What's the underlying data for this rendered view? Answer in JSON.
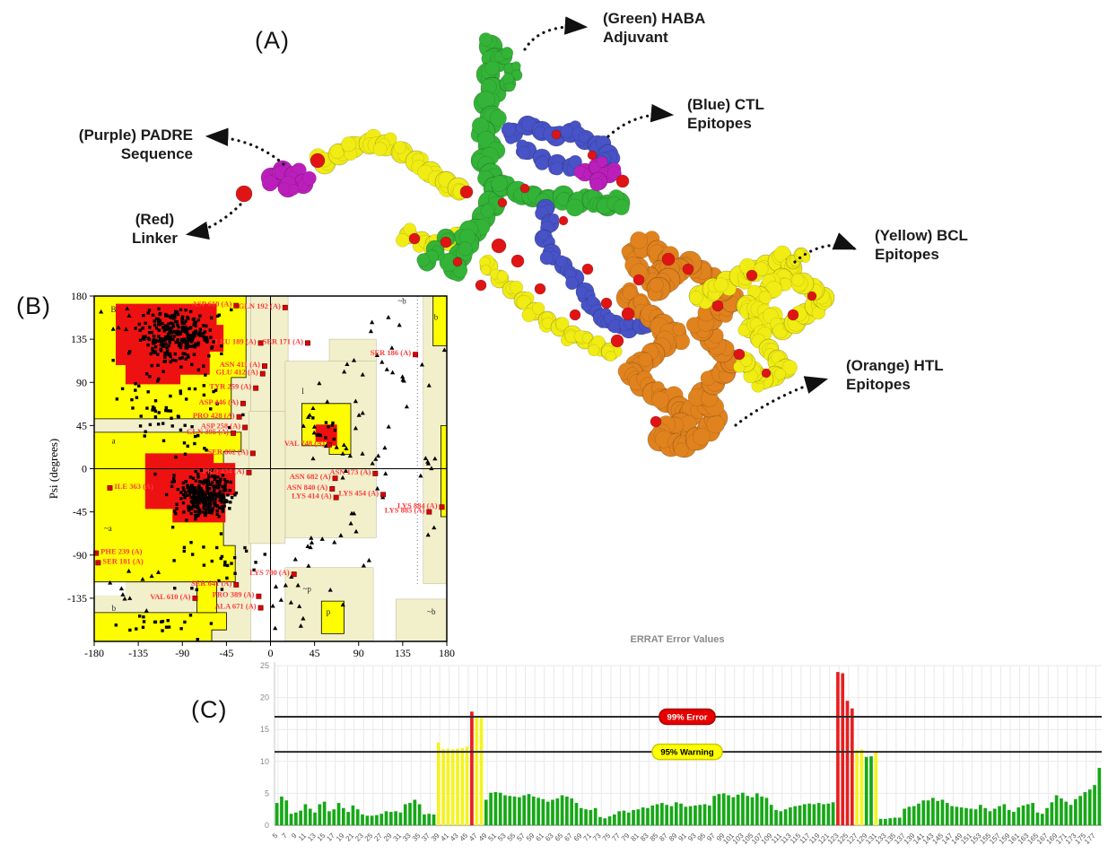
{
  "panel_labels": {
    "a": "(A)",
    "b": "(B)",
    "c": "(C)"
  },
  "molecule": {
    "colors": {
      "green": "#33b337",
      "blue": "#4753c6",
      "purple": "#bb1fbb",
      "yellow": "#f0ec14",
      "orange": "#e0821e",
      "red": "#e01414"
    },
    "annotations": [
      {
        "id": "haba",
        "line1": "(Green) HABA",
        "line2": "Adjuvant"
      },
      {
        "id": "ctl",
        "line1": "(Blue) CTL",
        "line2": "Epitopes"
      },
      {
        "id": "padre",
        "line1": "(Purple) PADRE",
        "line2": "Sequence"
      },
      {
        "id": "linker",
        "line1": "(Red)",
        "line2": "Linker"
      },
      {
        "id": "bcl",
        "line1": "(Yellow) BCL",
        "line2": "Epitopes"
      },
      {
        "id": "htl",
        "line1": "(Orange) HTL",
        "line2": "Epitopes"
      }
    ]
  },
  "chart_data": [
    {
      "type": "scatter",
      "name": "ramachandran_plot",
      "title": "",
      "xlabel": "",
      "ylabel": "Psi (degrees)",
      "xlim": [
        -180,
        180
      ],
      "ylim": [
        -180,
        180
      ],
      "xticks": [
        -180,
        -135,
        -90,
        -45,
        0,
        45,
        90,
        135,
        180
      ],
      "yticks": [
        180,
        135,
        90,
        45,
        0,
        -45,
        -90,
        -135
      ],
      "region_colors": {
        "core": "#ee1111",
        "allowed": "#fdfd00",
        "generous": "#f2efcb",
        "disallowed": "#ffffff",
        "label_text": "#ff3b3b"
      },
      "region_letters": [
        {
          "t": "B",
          "phi": -163,
          "psi": 163
        },
        {
          "t": "~b",
          "phi": 130,
          "psi": 172
        },
        {
          "t": "b",
          "phi": 167,
          "psi": 155
        },
        {
          "t": "a",
          "phi": -162,
          "psi": 26
        },
        {
          "t": "~a",
          "phi": -170,
          "psi": -65
        },
        {
          "t": "l",
          "phi": 32,
          "psi": 78
        },
        {
          "t": "b",
          "phi": -162,
          "psi": -148
        },
        {
          "t": "~b",
          "phi": 160,
          "psi": -152
        },
        {
          "t": "~p",
          "phi": 33,
          "psi": -128
        },
        {
          "t": "p",
          "phi": 57,
          "psi": -152
        }
      ],
      "labeled_residues": [
        {
          "name": "ASP 610 (A)",
          "phi": -35,
          "psi": 170,
          "side": "l"
        },
        {
          "name": "GLN 192 (A)",
          "phi": 15,
          "psi": 168,
          "side": "l"
        },
        {
          "name": "LEU 189 (A)",
          "phi": -10,
          "psi": 131,
          "side": "l"
        },
        {
          "name": "SER 171 (A)",
          "phi": 38,
          "psi": 131,
          "side": "l"
        },
        {
          "name": "SER 186 (A)",
          "phi": 148,
          "psi": 119,
          "side": "l"
        },
        {
          "name": "ASN 411 (A)",
          "phi": -6,
          "psi": 107,
          "side": "l"
        },
        {
          "name": "GLU 412 (A)",
          "phi": -8,
          "psi": 99,
          "side": "l"
        },
        {
          "name": "TYR 259 (A)",
          "phi": -15,
          "psi": 84,
          "side": "l"
        },
        {
          "name": "ASP 446 (A)",
          "phi": -28,
          "psi": 68,
          "side": "l"
        },
        {
          "name": "PRO 428 (A)",
          "phi": -32,
          "psi": 54,
          "side": "l"
        },
        {
          "name": "ASP 258 (A)",
          "phi": -26,
          "psi": 43,
          "side": "l"
        },
        {
          "name": "GLN 395 (A)",
          "phi": -38,
          "psi": 37,
          "side": "l"
        },
        {
          "name": "SER 862 (A)",
          "phi": -18,
          "psi": 16,
          "side": "l"
        },
        {
          "name": "PRO 434 (A)",
          "phi": -22,
          "psi": -4,
          "side": "l"
        },
        {
          "name": "ILE 363 (A)",
          "phi": -164,
          "psi": -20,
          "side": "r"
        },
        {
          "name": "VAL 748 (A)",
          "phi": 60,
          "psi": 25,
          "side": "l"
        },
        {
          "name": "ASN 173 (A)",
          "phi": 107,
          "psi": -5,
          "side": "l"
        },
        {
          "name": "ASN 682 (A)",
          "phi": 66,
          "psi": -10,
          "side": "l"
        },
        {
          "name": "ASN 840 (A)",
          "phi": 63,
          "psi": -21,
          "side": "l"
        },
        {
          "name": "LYS 414 (A)",
          "phi": 67,
          "psi": -30,
          "side": "l"
        },
        {
          "name": "LYS 454 (A)",
          "phi": 115,
          "psi": -27,
          "side": "l"
        },
        {
          "name": "LYS 884 (A)",
          "phi": 175,
          "psi": -40,
          "side": "l"
        },
        {
          "name": "LYS 885 (A)",
          "phi": 162,
          "psi": -45,
          "side": "l"
        },
        {
          "name": "PHE 239 (A)",
          "phi": -178,
          "psi": -88,
          "side": "r"
        },
        {
          "name": "SER 181 (A)",
          "phi": -176,
          "psi": -98,
          "side": "r"
        },
        {
          "name": "LYS 780 (A)",
          "phi": 24,
          "psi": -110,
          "side": "l"
        },
        {
          "name": "SER 641 (A)",
          "phi": -35,
          "psi": -121,
          "side": "l"
        },
        {
          "name": "VAL 610 (A)",
          "phi": -77,
          "psi": -135,
          "side": "l"
        },
        {
          "name": "PRO 389 (A)",
          "phi": -12,
          "psi": -133,
          "side": "l"
        },
        {
          "name": "ALA 671 (A)",
          "phi": -10,
          "psi": -145,
          "side": "l"
        }
      ],
      "scatter_clusters": {
        "squares": [
          {
            "n": 270,
            "cx": -95,
            "cy": 138,
            "sx": 36,
            "sy": 24
          },
          {
            "n": 300,
            "cx": -68,
            "cy": -28,
            "sx": 26,
            "sy": 20
          },
          {
            "n": 70,
            "cx": -100,
            "cy": 60,
            "sx": 52,
            "sy": 55
          },
          {
            "n": 30,
            "cx": -60,
            "cy": -95,
            "sx": 45,
            "sy": 30
          },
          {
            "n": 20,
            "cx": -120,
            "cy": -160,
            "sx": 45,
            "sy": 14
          },
          {
            "n": 12,
            "cx": 55,
            "cy": 40,
            "sx": 18,
            "sy": 14
          }
        ],
        "triangles": [
          {
            "n": 30,
            "cx": 75,
            "cy": 30,
            "sx": 45,
            "sy": 55
          },
          {
            "n": 20,
            "cx": 120,
            "cy": 110,
            "sx": 45,
            "sy": 40
          },
          {
            "n": 16,
            "cx": 60,
            "cy": -70,
            "sx": 50,
            "sy": 40
          },
          {
            "n": 12,
            "cx": 30,
            "cy": -140,
            "sx": 45,
            "sy": 25
          },
          {
            "n": 10,
            "cx": -140,
            "cy": -120,
            "sx": 30,
            "sy": 35
          },
          {
            "n": 8,
            "cx": 160,
            "cy": -30,
            "sx": 15,
            "sy": 60
          },
          {
            "n": 6,
            "cx": -160,
            "cy": 150,
            "sx": 15,
            "sy": 20
          }
        ]
      }
    },
    {
      "type": "bar",
      "name": "errat_plot",
      "title": "ERRAT Error Values",
      "ylim": [
        0,
        25
      ],
      "yticks": [
        0,
        5,
        10,
        15,
        20,
        25
      ],
      "grid": true,
      "bar_colors": {
        "g": "#17a817",
        "y": "#f4f41e",
        "r": "#e81f1f"
      },
      "thresholds": [
        {
          "value": 17,
          "label": "99% Error",
          "badge_bg": "#e60000",
          "badge_border": "#a80000",
          "badge_fg": "#ffffff"
        },
        {
          "value": 11.5,
          "label": "95% Warning",
          "badge_bg": "#ffff00",
          "badge_border": "#c9c900",
          "badge_fg": "#000000"
        }
      ],
      "x_labels": [
        "5",
        "7",
        "9",
        "11",
        "13",
        "15",
        "17",
        "19",
        "21",
        "23",
        "25",
        "27",
        "29",
        "31",
        "33",
        "35",
        "37",
        "39",
        "41",
        "43",
        "45",
        "47",
        "49",
        "51",
        "53",
        "55",
        "57",
        "59",
        "61",
        "63",
        "65",
        "67",
        "69",
        "71",
        "73",
        "75",
        "77",
        "79",
        "81",
        "83",
        "85",
        "87",
        "89",
        "91",
        "93",
        "95",
        "97",
        "99",
        "101",
        "103",
        "105",
        "107",
        "109",
        "111",
        "113",
        "115",
        "117",
        "119",
        "121",
        "123",
        "125",
        "127",
        "129",
        "131",
        "133",
        "135",
        "137",
        "139",
        "141",
        "143",
        "145",
        "147",
        "149",
        "151",
        "153",
        "155",
        "157",
        "159",
        "161",
        "163",
        "165",
        "167",
        "169",
        "171",
        "173",
        "175",
        "177"
      ],
      "values": [
        3.5,
        4.5,
        3.9,
        1.8,
        2.0,
        2.3,
        3.3,
        2.6,
        2.0,
        3.3,
        3.7,
        2.2,
        2.5,
        3.5,
        2.7,
        2.1,
        3.1,
        2.5,
        1.7,
        1.5,
        1.5,
        1.6,
        1.8,
        2.2,
        2.1,
        2.2,
        2.0,
        3.3,
        3.5,
        4.0,
        3.3,
        1.7,
        1.8,
        1.7,
        13.0,
        11.9,
        12.0,
        11.9,
        12.0,
        12.1,
        12.3,
        17.8,
        16.9,
        16.8,
        4.0,
        5.1,
        5.2,
        5.1,
        4.7,
        4.6,
        4.5,
        4.4,
        4.7,
        4.9,
        4.5,
        4.3,
        4.1,
        3.7,
        4.0,
        4.2,
        4.7,
        4.5,
        4.2,
        3.5,
        2.7,
        2.5,
        2.4,
        2.7,
        1.3,
        1.1,
        1.4,
        1.7,
        2.2,
        2.3,
        2.0,
        2.4,
        2.5,
        2.8,
        2.7,
        3.1,
        3.3,
        3.5,
        3.2,
        3.0,
        3.6,
        3.4,
        2.9,
        3.0,
        3.1,
        3.2,
        3.3,
        3.1,
        4.6,
        4.9,
        5.0,
        4.7,
        4.4,
        4.8,
        5.1,
        4.6,
        4.4,
        5.0,
        4.5,
        4.3,
        3.2,
        2.4,
        2.2,
        2.5,
        2.8,
        3.0,
        3.1,
        3.3,
        3.4,
        3.3,
        3.5,
        3.3,
        3.4,
        3.6,
        24.0,
        23.8,
        19.5,
        18.3,
        11.8,
        11.9,
        10.7,
        10.8,
        11.6,
        1.0,
        1.0,
        1.1,
        1.2,
        1.2,
        2.6,
        2.9,
        3.0,
        3.4,
        3.9,
        3.9,
        4.3,
        3.8,
        4.0,
        3.5,
        3.0,
        2.9,
        2.8,
        2.7,
        2.6,
        2.5,
        3.2,
        2.7,
        2.2,
        2.6,
        3.0,
        3.3,
        2.4,
        2.1,
        2.8,
        3.1,
        3.3,
        3.5,
        2.0,
        1.8,
        2.7,
        3.6,
        4.7,
        4.2,
        3.7,
        3.2,
        4.1,
        4.6,
        5.2,
        5.6,
        6.3,
        9.0
      ],
      "color_segments": [
        [
          34,
          "g"
        ],
        [
          7,
          "y"
        ],
        [
          1,
          "r"
        ],
        [
          2,
          "y"
        ],
        [
          72,
          "g"
        ],
        [
          2,
          "g"
        ],
        [
          4,
          "r"
        ],
        [
          2,
          "y"
        ],
        [
          2,
          "g"
        ],
        [
          1,
          "y"
        ],
        [
          1,
          "g"
        ],
        [
          46,
          "g"
        ]
      ]
    }
  ]
}
